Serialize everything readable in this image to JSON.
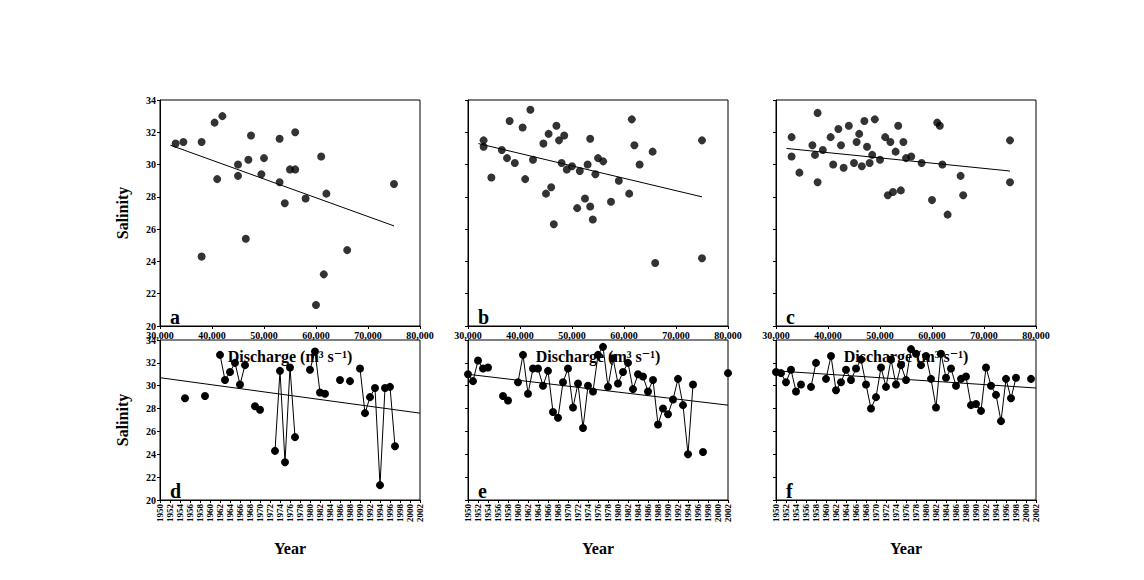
{
  "chart_data": [
    {
      "type": "scatter",
      "annotations": [
        "a"
      ],
      "xlabel": "Discharge (m³ s⁻¹)",
      "ylabel": "Salinity",
      "xlim": [
        30000,
        80000
      ],
      "xticks": [
        {
          "value": 30000,
          "label": "30,000"
        },
        {
          "value": 40000,
          "label": "40,000"
        },
        {
          "value": 50000,
          "label": "50,000"
        },
        {
          "value": 60000,
          "label": "60,000"
        },
        {
          "value": 70000,
          "label": "70,000"
        },
        {
          "value": 80000,
          "label": "80,000"
        }
      ],
      "ylim": [
        20,
        34
      ],
      "yticks": [
        20,
        22,
        24,
        26,
        28,
        30,
        32,
        34
      ],
      "series": [
        {
          "type": "scatter",
          "marker": "circle",
          "color": "#000000",
          "x": [
            33000,
            34500,
            38000,
            38000,
            40500,
            41000,
            42000,
            45000,
            45000,
            46500,
            47000,
            47500,
            49500,
            50000,
            53000,
            53000,
            54000,
            55000,
            56000,
            56000,
            58000,
            60000,
            61000,
            61500,
            62000,
            66000,
            75000
          ],
          "values": [
            31.3,
            31.4,
            31.4,
            24.3,
            32.6,
            29.1,
            33.0,
            30.0,
            29.3,
            25.4,
            30.3,
            31.8,
            29.4,
            30.4,
            31.6,
            28.9,
            27.6,
            29.7,
            32.0,
            29.7,
            27.9,
            21.3,
            30.5,
            23.2,
            28.2,
            24.7,
            28.8
          ]
        },
        {
          "type": "line",
          "marker": "none",
          "line_style": "solid",
          "color": "#000000",
          "x": [
            32000,
            75000
          ],
          "values": [
            31.2,
            26.2
          ]
        }
      ]
    },
    {
      "type": "scatter",
      "annotations": [
        "b"
      ],
      "xlabel": "Discharge (m³ s⁻¹)",
      "tick_labels": "x",
      "xlim": [
        30000,
        80000
      ],
      "xticks": [
        {
          "value": 30000,
          "label": "30,000"
        },
        {
          "value": 40000,
          "label": "40,000"
        },
        {
          "value": 50000,
          "label": "50,000"
        },
        {
          "value": 60000,
          "label": "60,000"
        },
        {
          "value": 70000,
          "label": "70,000"
        },
        {
          "value": 80000,
          "label": "80,000"
        }
      ],
      "ylim": [
        20,
        34
      ],
      "yticks": [
        20,
        22,
        24,
        26,
        28,
        30,
        32,
        34
      ],
      "series": [
        {
          "type": "scatter",
          "marker": "circle",
          "color": "#000000",
          "x": [
            33000,
            33000,
            34500,
            36500,
            37500,
            38000,
            39000,
            40500,
            41000,
            42000,
            42500,
            44500,
            45000,
            45500,
            46000,
            46500,
            47000,
            47500,
            48000,
            48500,
            49000,
            50000,
            51000,
            51500,
            52500,
            53000,
            53500,
            53500,
            54000,
            54500,
            55000,
            56000,
            57500,
            59000,
            61000,
            61500,
            62000,
            63000,
            65500,
            66000,
            75000,
            75000
          ],
          "values": [
            31.5,
            31.1,
            29.2,
            30.9,
            30.4,
            32.7,
            30.1,
            32.3,
            29.1,
            33.4,
            30.3,
            31.3,
            28.2,
            31.9,
            28.6,
            26.3,
            32.4,
            31.5,
            30.1,
            31.8,
            29.7,
            29.9,
            27.3,
            29.6,
            27.9,
            30.0,
            27.4,
            31.6,
            26.6,
            29.4,
            30.4,
            30.2,
            27.7,
            29.0,
            28.2,
            32.8,
            31.2,
            30.0,
            30.8,
            23.9,
            31.5,
            24.2
          ]
        },
        {
          "type": "line",
          "marker": "none",
          "line_style": "solid",
          "color": "#000000",
          "x": [
            32000,
            75000
          ],
          "values": [
            31.3,
            28.0
          ]
        }
      ]
    },
    {
      "type": "scatter",
      "annotations": [
        "c"
      ],
      "xlabel": "Discharge (m³ s⁻¹)",
      "tick_labels": "x",
      "xlim": [
        30000,
        80000
      ],
      "xticks": [
        {
          "value": 30000,
          "label": "30,000"
        },
        {
          "value": 40000,
          "label": "40,000"
        },
        {
          "value": 50000,
          "label": "50,000"
        },
        {
          "value": 60000,
          "label": "60,000"
        },
        {
          "value": 70000,
          "label": "70,000"
        },
        {
          "value": 80000,
          "label": "80,000"
        }
      ],
      "ylim": [
        20,
        34
      ],
      "yticks": [
        20,
        22,
        24,
        26,
        28,
        30,
        32,
        34
      ],
      "series": [
        {
          "type": "scatter",
          "marker": "circle",
          "color": "#000000",
          "x": [
            33000,
            33000,
            34500,
            37000,
            37500,
            38000,
            38000,
            39000,
            40500,
            41000,
            42000,
            42500,
            43000,
            44000,
            45000,
            45500,
            46000,
            46500,
            47000,
            47500,
            48000,
            48500,
            49000,
            50000,
            51000,
            51500,
            52000,
            52500,
            53000,
            53500,
            54000,
            54500,
            55000,
            56000,
            58000,
            60000,
            61000,
            61500,
            62000,
            63000,
            65500,
            66000,
            75000,
            75000
          ],
          "values": [
            31.7,
            30.5,
            29.5,
            31.2,
            30.6,
            33.2,
            28.9,
            30.9,
            31.7,
            30.0,
            32.2,
            31.2,
            29.8,
            32.4,
            30.1,
            31.4,
            31.9,
            29.9,
            32.7,
            31.1,
            30.1,
            30.6,
            32.8,
            30.3,
            31.7,
            28.1,
            31.4,
            28.3,
            30.8,
            32.4,
            28.4,
            31.4,
            30.4,
            30.5,
            30.1,
            27.8,
            32.6,
            32.4,
            30.0,
            26.9,
            29.3,
            28.1,
            31.5,
            28.9
          ]
        },
        {
          "type": "line",
          "marker": "none",
          "line_style": "solid",
          "color": "#000000",
          "x": [
            32000,
            75000
          ],
          "values": [
            31.0,
            29.6
          ]
        }
      ]
    },
    {
      "type": "line",
      "annotations": [
        "d"
      ],
      "xlabel": "Year",
      "ylabel": "Salinity",
      "xlim": [
        1950,
        2002
      ],
      "xticks": [
        1950,
        1952,
        1954,
        1956,
        1958,
        1960,
        1962,
        1964,
        1966,
        1968,
        1970,
        1972,
        1974,
        1976,
        1978,
        1980,
        1982,
        1984,
        1986,
        1988,
        1990,
        1992,
        1994,
        1996,
        1998,
        2000,
        2002
      ],
      "ylim": [
        20,
        34
      ],
      "yticks": [
        20,
        22,
        24,
        26,
        28,
        30,
        32,
        34
      ],
      "series": [
        {
          "type": "line",
          "marker": "circle",
          "line_style": "solid",
          "color": "#000000",
          "x": [
            1955,
            1957,
            1959,
            1961,
            1962,
            1963,
            1964,
            1965,
            1966,
            1967,
            1968,
            1969,
            1970,
            1972,
            1973,
            1974,
            1975,
            1976,
            1977,
            1979,
            1980,
            1981,
            1982,
            1983,
            1985,
            1986,
            1987,
            1988,
            1989,
            1990,
            1991,
            1992,
            1993,
            1994,
            1995,
            1996,
            1997
          ],
          "values": [
            28.9,
            null,
            29.1,
            null,
            32.7,
            30.5,
            31.2,
            32.0,
            30.1,
            31.8,
            null,
            28.2,
            27.9,
            null,
            24.3,
            31.3,
            23.3,
            31.6,
            25.5,
            null,
            31.4,
            33.0,
            29.4,
            29.3,
            null,
            30.5,
            null,
            30.4,
            null,
            31.5,
            27.6,
            29.0,
            29.8,
            21.3,
            29.8,
            29.9,
            24.7
          ]
        },
        {
          "type": "line",
          "marker": "none",
          "line_style": "solid",
          "color": "#000000",
          "x": [
            1950,
            2002
          ],
          "values": [
            30.7,
            27.6
          ]
        }
      ]
    },
    {
      "type": "line",
      "annotations": [
        "e"
      ],
      "xlabel": "Year",
      "tick_labels": "x",
      "xlim": [
        1950,
        2002
      ],
      "xticks": [
        1950,
        1952,
        1954,
        1956,
        1958,
        1960,
        1962,
        1964,
        1966,
        1968,
        1970,
        1972,
        1974,
        1976,
        1978,
        1980,
        1982,
        1984,
        1986,
        1988,
        1990,
        1992,
        1994,
        1996,
        1998,
        2000,
        2002
      ],
      "ylim": [
        20,
        34
      ],
      "yticks": [
        20,
        22,
        24,
        26,
        28,
        30,
        32,
        34
      ],
      "series": [
        {
          "type": "line",
          "marker": "circle",
          "line_style": "solid",
          "color": "#000000",
          "x": [
            1950,
            1951,
            1952,
            1953,
            1954,
            1955,
            1957,
            1958,
            1959,
            1960,
            1961,
            1962,
            1963,
            1964,
            1965,
            1966,
            1967,
            1968,
            1969,
            1970,
            1971,
            1972,
            1973,
            1974,
            1975,
            1976,
            1977,
            1978,
            1979,
            1980,
            1981,
            1982,
            1983,
            1984,
            1985,
            1986,
            1987,
            1988,
            1989,
            1990,
            1991,
            1992,
            1993,
            1994,
            1995,
            1996,
            1997,
            1999,
            2002
          ],
          "values": [
            31.0,
            30.4,
            32.2,
            31.5,
            31.6,
            null,
            29.1,
            28.7,
            null,
            30.3,
            32.7,
            29.3,
            31.5,
            31.5,
            30.0,
            31.3,
            27.7,
            27.2,
            30.3,
            31.5,
            28.1,
            30.2,
            26.3,
            30.0,
            29.5,
            32.7,
            33.4,
            29.9,
            32.4,
            30.2,
            31.2,
            32.0,
            29.7,
            31.0,
            30.8,
            29.5,
            30.5,
            26.6,
            28.0,
            27.5,
            28.8,
            30.6,
            28.3,
            24.0,
            30.1,
            null,
            24.2,
            null,
            31.1
          ]
        },
        {
          "type": "line",
          "marker": "none",
          "line_style": "solid",
          "color": "#000000",
          "x": [
            1950,
            2002
          ],
          "values": [
            31.0,
            28.3
          ]
        }
      ]
    },
    {
      "type": "line",
      "annotations": [
        "f"
      ],
      "xlabel": "Year",
      "tick_labels": "x",
      "xlim": [
        1950,
        2002
      ],
      "xticks": [
        1950,
        1952,
        1954,
        1956,
        1958,
        1960,
        1962,
        1964,
        1966,
        1968,
        1970,
        1972,
        1974,
        1976,
        1978,
        1980,
        1982,
        1984,
        1986,
        1988,
        1990,
        1992,
        1994,
        1996,
        1998,
        2000,
        2002
      ],
      "ylim": [
        20,
        34
      ],
      "yticks": [
        20,
        22,
        24,
        26,
        28,
        30,
        32,
        34
      ],
      "series": [
        {
          "type": "line",
          "marker": "circle",
          "line_style": "solid",
          "color": "#000000",
          "x": [
            1950,
            1951,
            1952,
            1953,
            1954,
            1955,
            1956,
            1957,
            1958,
            1959,
            1960,
            1961,
            1962,
            1963,
            1964,
            1965,
            1966,
            1967,
            1968,
            1969,
            1970,
            1971,
            1972,
            1973,
            1974,
            1975,
            1976,
            1977,
            1978,
            1979,
            1980,
            1981,
            1982,
            1983,
            1984,
            1985,
            1986,
            1987,
            1988,
            1989,
            1990,
            1991,
            1992,
            1993,
            1994,
            1995,
            1996,
            1997,
            1998,
            1999,
            2001
          ],
          "values": [
            31.2,
            31.1,
            30.3,
            31.4,
            29.5,
            30.1,
            null,
            29.9,
            32.0,
            null,
            30.6,
            32.6,
            29.6,
            30.3,
            31.4,
            30.5,
            31.5,
            32.3,
            30.1,
            28.0,
            29.0,
            31.6,
            29.9,
            32.3,
            30.1,
            31.8,
            30.5,
            33.2,
            32.8,
            31.8,
            32.6,
            30.6,
            28.1,
            32.8,
            30.7,
            31.5,
            30.0,
            30.6,
            30.8,
            28.3,
            28.4,
            27.8,
            31.6,
            30.0,
            29.2,
            26.9,
            30.6,
            28.9,
            30.7,
            null,
            30.6
          ]
        },
        {
          "type": "line",
          "marker": "none",
          "line_style": "solid",
          "color": "#000000",
          "x": [
            1950,
            2002
          ],
          "values": [
            31.3,
            29.8
          ]
        }
      ]
    }
  ]
}
